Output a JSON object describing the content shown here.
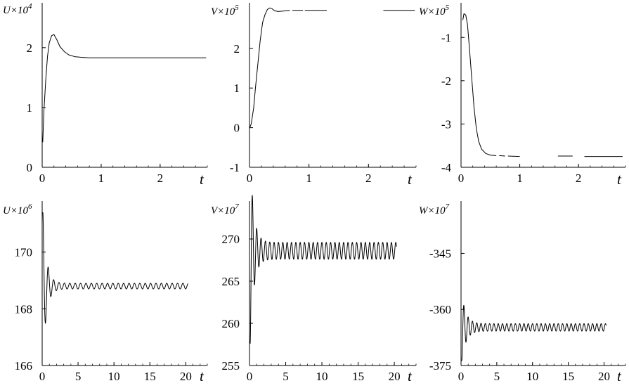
{
  "chart_data": [
    {
      "type": "line",
      "ylabel": "U×10^4",
      "ylabel_base": "U×10",
      "ylabel_exp": "4",
      "xlabel": "t",
      "xlim": [
        0,
        2.8
      ],
      "ylim": [
        0,
        2.75
      ],
      "xticks": [
        0,
        1,
        2
      ],
      "yticks": [
        0,
        1,
        2
      ],
      "yticklabels": [
        "0",
        "1",
        "2"
      ],
      "series": [
        {
          "segments": [
            [
              [
                0.01,
                0.42
              ],
              [
                0.03,
                0.95
              ],
              [
                0.06,
                1.45
              ],
              [
                0.09,
                1.85
              ],
              [
                0.12,
                2.08
              ],
              [
                0.16,
                2.2
              ],
              [
                0.2,
                2.22
              ],
              [
                0.25,
                2.13
              ],
              [
                0.3,
                2.02
              ],
              [
                0.38,
                1.93
              ],
              [
                0.45,
                1.88
              ],
              [
                0.55,
                1.85
              ],
              [
                0.65,
                1.84
              ],
              [
                0.8,
                1.83
              ],
              [
                1.0,
                1.83
              ],
              [
                1.5,
                1.83
              ],
              [
                2.0,
                1.83
              ],
              [
                2.5,
                1.83
              ],
              [
                2.78,
                1.83
              ]
            ]
          ]
        }
      ]
    },
    {
      "type": "line",
      "ylabel": "V×10^5",
      "ylabel_base": "V×10",
      "ylabel_exp": "5",
      "xlabel": "t",
      "xlim": [
        0,
        2.8
      ],
      "ylim": [
        -1,
        3.15
      ],
      "xticks": [
        0,
        1,
        2
      ],
      "yticks": [
        -1,
        0,
        1,
        2
      ],
      "yticklabels": [
        "-1",
        "0",
        "1",
        "2"
      ],
      "series": [
        {
          "segments": [
            [
              [
                0.0,
                -0.02
              ],
              [
                0.03,
                0.1
              ],
              [
                0.07,
                0.5
              ],
              [
                0.1,
                1.0
              ],
              [
                0.14,
                1.6
              ],
              [
                0.18,
                2.2
              ],
              [
                0.22,
                2.65
              ],
              [
                0.26,
                2.85
              ],
              [
                0.3,
                2.98
              ],
              [
                0.34,
                3.02
              ],
              [
                0.38,
                3.0
              ],
              [
                0.42,
                2.95
              ],
              [
                0.48,
                2.93
              ],
              [
                0.55,
                2.94
              ],
              [
                0.62,
                2.95
              ],
              [
                0.68,
                2.96
              ]
            ],
            [
              [
                0.72,
                2.96
              ],
              [
                0.9,
                2.96
              ]
            ],
            [
              [
                0.93,
                2.96
              ],
              [
                1.3,
                2.96
              ]
            ],
            [
              [
                2.25,
                2.96
              ],
              [
                2.78,
                2.96
              ]
            ]
          ]
        }
      ]
    },
    {
      "type": "line",
      "ylabel": "W×10^5",
      "ylabel_base": "W×10",
      "ylabel_exp": "5",
      "xlabel": "t",
      "xlim": [
        0,
        2.8
      ],
      "ylim": [
        -4,
        -0.2
      ],
      "xticks": [
        0,
        1,
        2
      ],
      "yticks": [
        -4,
        -3,
        -2,
        -1
      ],
      "yticklabels": [
        "-4",
        "-3",
        "-2",
        "-1"
      ],
      "series": [
        {
          "segments": [
            [
              [
                0.03,
                -0.6
              ],
              [
                0.05,
                -0.45
              ],
              [
                0.08,
                -0.48
              ],
              [
                0.11,
                -0.7
              ],
              [
                0.14,
                -1.2
              ],
              [
                0.18,
                -1.9
              ],
              [
                0.22,
                -2.6
              ],
              [
                0.26,
                -3.1
              ],
              [
                0.3,
                -3.4
              ],
              [
                0.35,
                -3.58
              ],
              [
                0.42,
                -3.68
              ],
              [
                0.5,
                -3.72
              ],
              [
                0.6,
                -3.73
              ]
            ],
            [
              [
                0.65,
                -3.73
              ],
              [
                0.75,
                -3.74
              ]
            ],
            [
              [
                0.8,
                -3.74
              ],
              [
                1.0,
                -3.75
              ]
            ],
            [
              [
                1.65,
                -3.74
              ],
              [
                1.9,
                -3.74
              ]
            ],
            [
              [
                2.1,
                -3.75
              ],
              [
                2.75,
                -3.75
              ]
            ]
          ]
        }
      ]
    },
    {
      "type": "line",
      "ylabel": "U×10^6",
      "ylabel_base": "U×10",
      "ylabel_exp": "6",
      "xlabel": "t",
      "xlim": [
        0,
        23
      ],
      "ylim": [
        166,
        171.8
      ],
      "xticks": [
        0,
        5,
        10,
        15,
        20
      ],
      "yticks": [
        166,
        168,
        170
      ],
      "yticklabels": [
        "166",
        "168",
        "170"
      ],
      "series": [
        {
          "damped_oscillation": {
            "t_start": 0.1,
            "t_end": 20.3,
            "equilibrium": 168.8,
            "initial_amplitude": 2.6,
            "steady_amplitude": 0.1,
            "decay_time": 0.5,
            "period": 0.75,
            "phase": 1.57
          }
        }
      ]
    },
    {
      "type": "line",
      "ylabel": "V×10^7",
      "ylabel_base": "V×10",
      "ylabel_exp": "7",
      "xlabel": "t",
      "xlim": [
        0,
        23
      ],
      "ylim": [
        255,
        274.5
      ],
      "xticks": [
        0,
        5,
        10,
        15,
        20
      ],
      "yticks": [
        255,
        260,
        265,
        270
      ],
      "yticklabels": [
        "255",
        "260",
        "265",
        "270"
      ],
      "series": [
        {
          "damped_oscillation": {
            "t_start": 0.1,
            "t_end": 20.3,
            "equilibrium": 268.6,
            "initial_amplitude": 11.0,
            "steady_amplitude": 1.0,
            "decay_time": 0.5,
            "period": 0.6,
            "phase": -1.57
          }
        }
      ]
    },
    {
      "type": "line",
      "ylabel": "W×10^7",
      "ylabel_base": "W×10",
      "ylabel_exp": "7",
      "xlabel": "t",
      "xlim": [
        0,
        23
      ],
      "ylim": [
        -375,
        -331
      ],
      "xticks": [
        0,
        5,
        10,
        15,
        20
      ],
      "yticks": [
        -375,
        -360,
        -345
      ],
      "yticklabels": [
        "-375",
        "-360",
        "-345"
      ],
      "series": [
        {
          "damped_oscillation": {
            "t_start": 0.1,
            "t_end": 20.3,
            "equilibrium": -364.8,
            "initial_amplitude": 9.0,
            "steady_amplitude": 1.0,
            "decay_time": 0.6,
            "period": 0.6,
            "phase": -1.57
          }
        }
      ]
    }
  ]
}
